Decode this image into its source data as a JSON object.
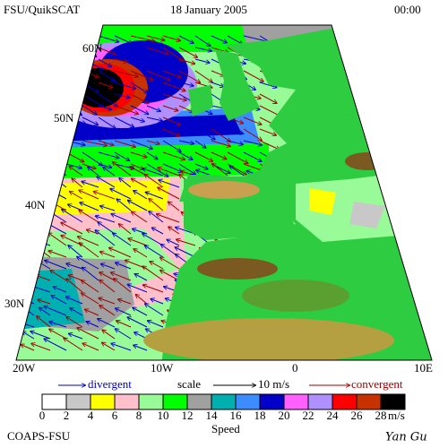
{
  "header": {
    "left": "FSU/QuikSCAT",
    "date": "18 January 2005",
    "time": "00:00"
  },
  "latitude_labels": [
    "60N",
    "50N",
    "40N",
    "30N"
  ],
  "longitude_labels": [
    "20W",
    "10W",
    "0",
    "10E"
  ],
  "legend": {
    "divergent": "divergent",
    "scale": "scale",
    "scale_value": "10 m/s",
    "convergent": "convergent"
  },
  "colorbar": {
    "colors": [
      "#ffffff",
      "#c8c8c8",
      "#ffff00",
      "#ffc0cb",
      "#98fb98",
      "#00ff00",
      "#a0a0a0",
      "#00b0b0",
      "#3c8cff",
      "#0000c8",
      "#ff60ff",
      "#b090ff",
      "#ff0000",
      "#c83200",
      "#000000"
    ],
    "labels": [
      "0",
      "2",
      "4",
      "6",
      "8",
      "10",
      "12",
      "14",
      "16",
      "18",
      "20",
      "22",
      "24",
      "26",
      "28"
    ],
    "unit": "m/s",
    "title": "Speed"
  },
  "footer": {
    "left": "COAPS-FSU",
    "right": "Yan Gu"
  }
}
